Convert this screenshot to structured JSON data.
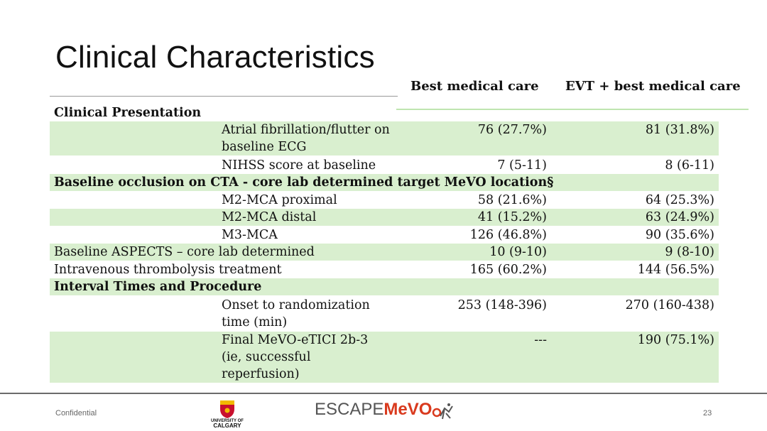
{
  "slide": {
    "title": "Clinical Characteristics",
    "page_number": "23",
    "confidential": "Confidential"
  },
  "columns": {
    "best": "Best medical care",
    "evt": "EVT + best medical care"
  },
  "rows": [
    {
      "label": "Clinical Presentation",
      "type": "section"
    },
    {
      "label": "Atrial fibrillation/flutter on baseline ECG",
      "v1": "76 (27.7%)",
      "v2": "81 (31.8%)"
    },
    {
      "label": "NIHSS score at baseline",
      "v1": "7 (5-11)",
      "v2": "8 (6-11)"
    },
    {
      "label": "Baseline occlusion on CTA - core lab determined target MeVO location§",
      "type": "section"
    },
    {
      "label": "M2-MCA proximal",
      "v1": "58 (21.6%)",
      "v2": "64 (25.3%)"
    },
    {
      "label": "M2-MCA distal",
      "v1": "41 (15.2%)",
      "v2": "63 (24.9%)"
    },
    {
      "label": "M3-MCA",
      "v1": "126 (46.8%)",
      "v2": "90 (35.6%)"
    },
    {
      "label": "Baseline ASPECTS – core lab determined",
      "v1": "10 (9-10)",
      "v2": "9 (8-10)"
    },
    {
      "label": "Intravenous thrombolysis treatment",
      "v1": "165 (60.2%)",
      "v2": "144 (56.5%)"
    },
    {
      "label": "Interval Times and Procedure",
      "type": "section"
    },
    {
      "label": "Onset to randomization time (min)",
      "v1": "253 (148-396)",
      "v2": "270 (160-438)"
    },
    {
      "label": "Final MeVO-eTICI 2b-3 (ie, successful reperfusion)",
      "v1": "---",
      "v2": "190 (75.1%)"
    }
  ],
  "logos": {
    "university_small": "UNIVERSITY OF",
    "university_big": "CALGARY",
    "escape_part1": "ESCAPE",
    "escape_part2": "MeVO"
  },
  "colors": {
    "row_green": "#d9efcf",
    "escape_red": "#d93a1e"
  }
}
